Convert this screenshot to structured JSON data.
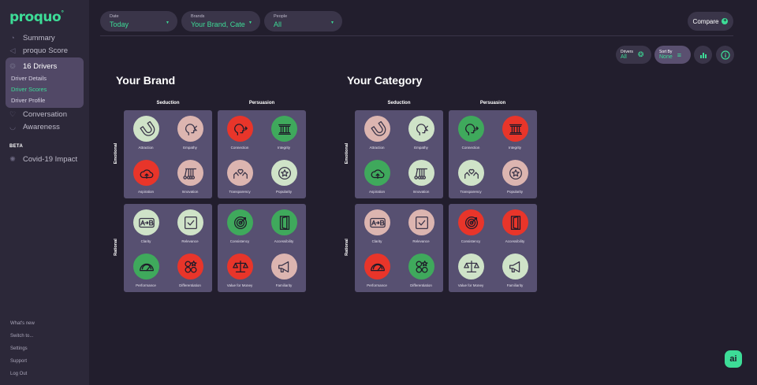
{
  "app": {
    "logo": "proquo"
  },
  "sidebar": {
    "items": [
      {
        "label": "Summary",
        "icon": "summary-icon"
      },
      {
        "label": "proquo Score",
        "icon": "score-icon"
      },
      {
        "label": "16 Drivers",
        "icon": "drivers-icon"
      },
      {
        "label": "Conversation",
        "icon": "conversation-icon"
      },
      {
        "label": "Awareness",
        "icon": "awareness-icon"
      },
      {
        "label": "Covid-19 Impact",
        "icon": "virus-icon"
      }
    ],
    "sub_items": [
      "Driver Details",
      "Driver Scores",
      "Driver Profile"
    ],
    "active_sub": "Driver Scores",
    "beta_label": "BETA",
    "footer": [
      "What's new",
      "Switch to...",
      "Settings",
      "Support",
      "Log Out"
    ]
  },
  "filters": {
    "date": {
      "label": "Date",
      "value": "Today"
    },
    "brands": {
      "label": "Brands",
      "value": "Your Brand, Cate"
    },
    "people": {
      "label": "People",
      "value": "All"
    }
  },
  "toolbar": {
    "compare_label": "Compare",
    "drivers": {
      "label": "Drivers",
      "value": "All"
    },
    "sort": {
      "label": "Sort By",
      "value": "None"
    }
  },
  "axes": {
    "columns": [
      "Seduction",
      "Persuasion"
    ],
    "rows": [
      "Emotional",
      "Rational"
    ]
  },
  "colors": {
    "green": "#3fa95c",
    "red": "#e8352a",
    "pale_green": "#cfe3c8",
    "pink": "#dcb5b0",
    "accent": "#3ddc97"
  },
  "panels": [
    {
      "title": "Your Brand",
      "quadrants": [
        {
          "drivers": [
            {
              "label": "Attraction",
              "icon": "magnet-icon",
              "color": "pale_green"
            },
            {
              "label": "Empathy",
              "icon": "empathy-head-icon",
              "color": "pink"
            },
            {
              "label": "Aspiration",
              "icon": "aspiration-cloud-icon",
              "color": "red"
            },
            {
              "label": "Innovation",
              "icon": "innovation-pendulum-icon",
              "color": "pink"
            }
          ]
        },
        {
          "drivers": [
            {
              "label": "Connection",
              "icon": "connection-head-icon",
              "color": "red"
            },
            {
              "label": "Integrity",
              "icon": "pillar-icon",
              "color": "green"
            },
            {
              "label": "Transparency",
              "icon": "hands-heart-icon",
              "color": "pink"
            },
            {
              "label": "Popularity",
              "icon": "star-badge-icon",
              "color": "pale_green"
            }
          ]
        },
        {
          "drivers": [
            {
              "label": "Clarity",
              "icon": "a-to-b-icon",
              "color": "pale_green"
            },
            {
              "label": "Relevance",
              "icon": "checkbox-icon",
              "color": "pale_green"
            },
            {
              "label": "Performance",
              "icon": "gauge-icon",
              "color": "green"
            },
            {
              "label": "Differentiation",
              "icon": "shapes-icon",
              "color": "red"
            }
          ]
        },
        {
          "drivers": [
            {
              "label": "Consistency",
              "icon": "target-icon",
              "color": "green"
            },
            {
              "label": "Accessibility",
              "icon": "door-icon",
              "color": "green"
            },
            {
              "label": "Value for Money",
              "icon": "scales-icon",
              "color": "red"
            },
            {
              "label": "Familiarity",
              "icon": "megaphone-icon",
              "color": "pink"
            }
          ]
        }
      ]
    },
    {
      "title": "Your Category",
      "quadrants": [
        {
          "drivers": [
            {
              "label": "Attraction",
              "icon": "magnet-icon",
              "color": "pink"
            },
            {
              "label": "Empathy",
              "icon": "empathy-head-icon",
              "color": "pale_green"
            },
            {
              "label": "Aspiration",
              "icon": "aspiration-cloud-icon",
              "color": "green"
            },
            {
              "label": "Innovation",
              "icon": "innovation-pendulum-icon",
              "color": "pale_green"
            }
          ]
        },
        {
          "drivers": [
            {
              "label": "Connection",
              "icon": "connection-head-icon",
              "color": "green"
            },
            {
              "label": "Integrity",
              "icon": "pillar-icon",
              "color": "red"
            },
            {
              "label": "Transparency",
              "icon": "hands-heart-icon",
              "color": "pale_green"
            },
            {
              "label": "Popularity",
              "icon": "star-badge-icon",
              "color": "pink"
            }
          ]
        },
        {
          "drivers": [
            {
              "label": "Clarity",
              "icon": "a-to-b-icon",
              "color": "pink"
            },
            {
              "label": "Relevance",
              "icon": "checkbox-icon",
              "color": "pink"
            },
            {
              "label": "Performance",
              "icon": "gauge-icon",
              "color": "red"
            },
            {
              "label": "Differentiation",
              "icon": "shapes-icon",
              "color": "green"
            }
          ]
        },
        {
          "drivers": [
            {
              "label": "Consistency",
              "icon": "target-icon",
              "color": "red"
            },
            {
              "label": "Accessibility",
              "icon": "door-icon",
              "color": "red"
            },
            {
              "label": "Value for Money",
              "icon": "scales-icon",
              "color": "pale_green"
            },
            {
              "label": "Familiarity",
              "icon": "megaphone-icon",
              "color": "pale_green"
            }
          ]
        }
      ]
    }
  ],
  "chat": {
    "label": "ai"
  }
}
